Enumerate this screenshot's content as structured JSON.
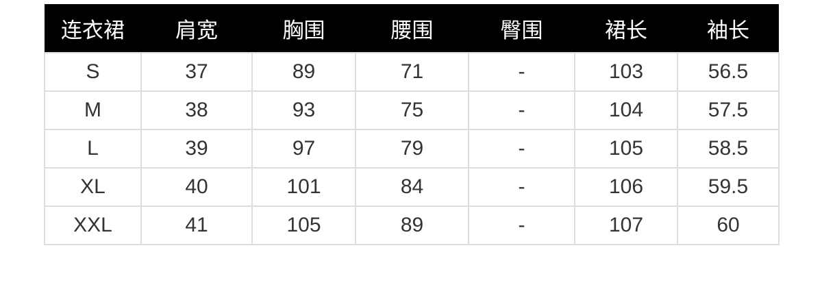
{
  "table": {
    "headers": [
      "连衣裙",
      "肩宽",
      "胸围",
      "腰围",
      "臀围",
      "裙长",
      "袖长"
    ],
    "rows": [
      [
        "S",
        "37",
        "89",
        "71",
        "-",
        "103",
        "56.5"
      ],
      [
        "M",
        "38",
        "93",
        "75",
        "-",
        "104",
        "57.5"
      ],
      [
        "L",
        "39",
        "97",
        "79",
        "-",
        "105",
        "58.5"
      ],
      [
        "XL",
        "40",
        "101",
        "84",
        "-",
        "106",
        "59.5"
      ],
      [
        "XXL",
        "41",
        "105",
        "89",
        "-",
        "107",
        "60"
      ]
    ]
  },
  "colors": {
    "header_bg": "#000000",
    "header_text": "#ffffff",
    "border": "#dcdcdc",
    "text": "#333333"
  }
}
